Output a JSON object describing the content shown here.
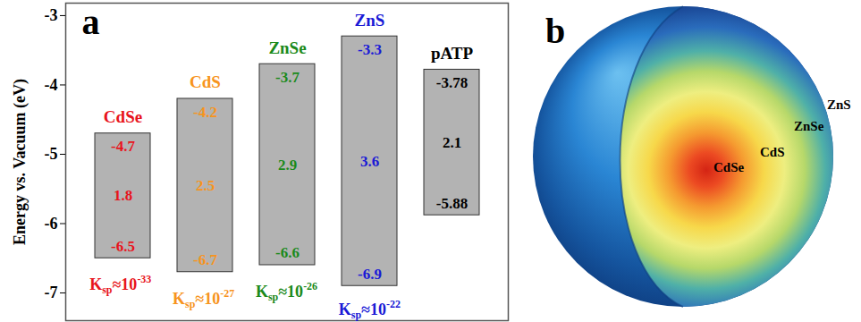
{
  "chart_data": {
    "type": "floating_bar",
    "panel_label": "a",
    "ylabel": "Energy vs. Vacuum (eV)",
    "categories": [
      "CdSe",
      "CdS",
      "ZnSe",
      "ZnS",
      "pATP"
    ],
    "top": [
      -4.7,
      -4.2,
      -3.7,
      -3.3,
      -3.78
    ],
    "bottom": [
      -6.5,
      -6.7,
      -6.6,
      -6.9,
      -5.88
    ],
    "gap": [
      1.8,
      2.5,
      2.9,
      3.6,
      2.1
    ],
    "ksp_exponents": [
      -33,
      -27,
      -26,
      -22,
      null
    ],
    "ksp_label": {
      "symbol": "K",
      "subscript": "sp",
      "prefix": "≈10"
    },
    "color": "#b3b3b3",
    "colors": [
      "#e8141c",
      "#f7941d",
      "#1b8a1b",
      "#1a1ad6",
      "#000000"
    ],
    "data_labels": true,
    "ylim": [
      -7.4,
      -2.82
    ],
    "yticks": [
      -7,
      -6,
      -5,
      -4,
      -3
    ]
  },
  "diagram": {
    "panel_label": "b",
    "layers": [
      "CdSe",
      "CdS",
      "ZnSe",
      "ZnS"
    ]
  }
}
